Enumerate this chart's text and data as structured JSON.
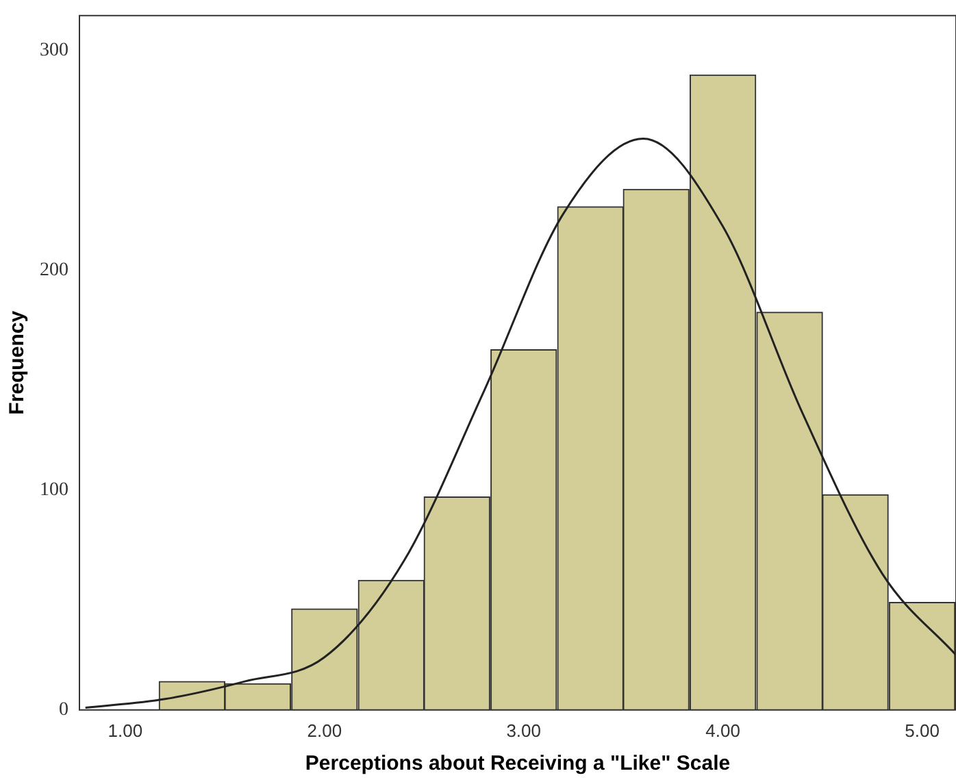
{
  "chart_data": {
    "type": "histogram",
    "xlabel": "Perceptions about Receiving a \"Like\" Scale",
    "ylabel": "Frequency",
    "bins": [
      1.17,
      1.5,
      1.83,
      2.17,
      2.5,
      2.83,
      3.17,
      3.5,
      3.83,
      4.17,
      4.5,
      4.83,
      5.17
    ],
    "values": [
      13,
      12,
      46,
      59,
      97,
      164,
      229,
      237,
      289,
      181,
      98,
      49
    ],
    "color": "#d3ce97",
    "series": [
      {
        "type": "line",
        "color": "#222222",
        "x": [
          0.8,
          1.2,
          1.6,
          2.0,
          2.4,
          2.8,
          3.2,
          3.6,
          4.0,
          4.4,
          4.8,
          5.17
        ],
        "values": [
          1,
          5,
          13,
          24,
          68,
          145,
          226,
          260,
          220,
          135,
          62,
          25
        ]
      }
    ],
    "xlim": [
      0.77,
      5.17
    ],
    "ylim": [
      0,
      316
    ],
    "xticks": [
      {
        "value": 1,
        "label": "1.00"
      },
      {
        "value": 2,
        "label": "2.00"
      },
      {
        "value": 3,
        "label": "3.00"
      },
      {
        "value": 4,
        "label": "4.00"
      },
      {
        "value": 5,
        "label": "5.00"
      }
    ],
    "yticks": [
      0,
      100,
      200,
      300
    ],
    "grid": false,
    "legend": false
  }
}
